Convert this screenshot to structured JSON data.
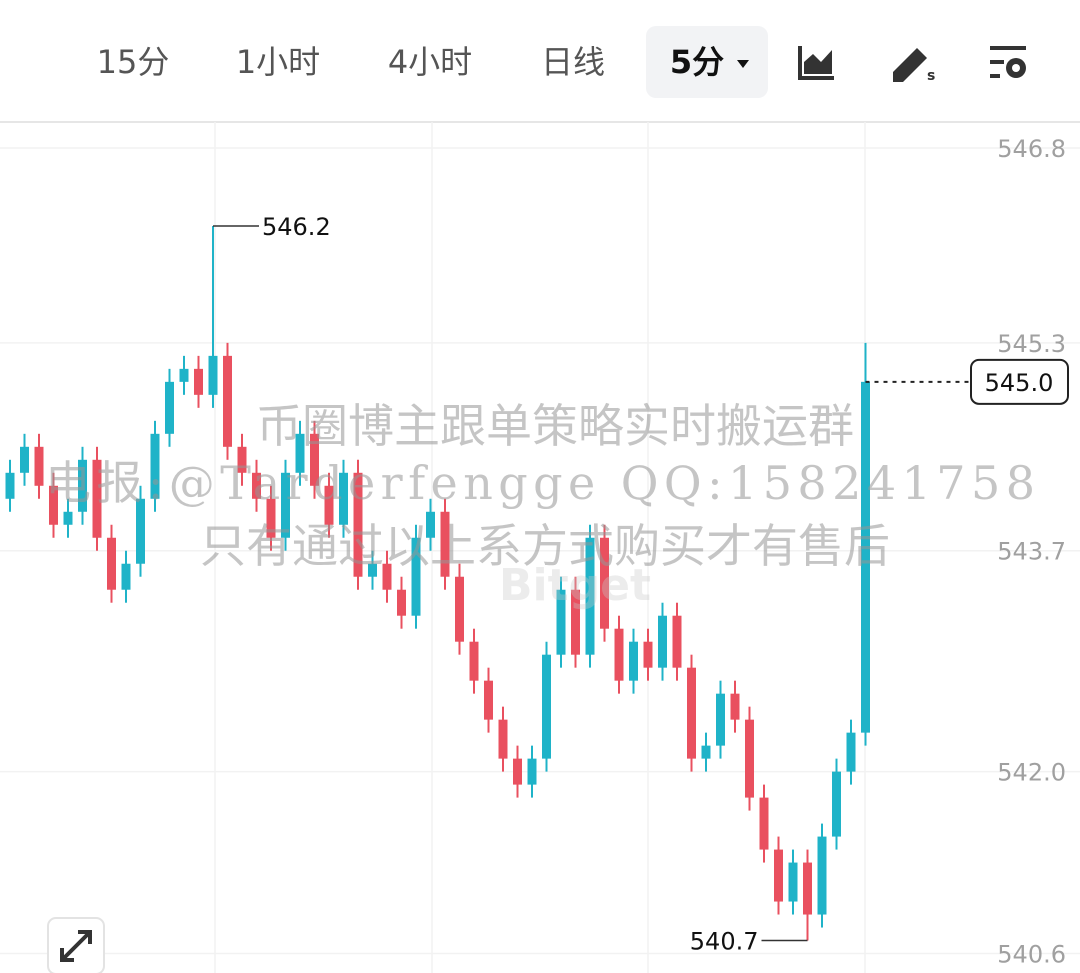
{
  "toolbar": {
    "intervals": [
      "15分",
      "1小时",
      "4小时",
      "日线"
    ],
    "active": "5分"
  },
  "chart_data": {
    "type": "candlestick",
    "open": [
      544.1,
      544.3,
      544.5,
      544.2,
      543.9,
      544.0,
      544.4,
      543.8,
      543.4,
      543.6,
      544.1,
      544.6,
      545.0,
      545.1,
      544.9,
      545.2,
      544.5,
      544.3,
      544.1,
      543.8,
      544.3,
      544.6,
      544.2,
      543.9,
      544.3,
      543.5,
      543.6,
      543.4,
      543.2,
      543.8,
      544.0,
      543.5,
      543.0,
      542.7,
      542.4,
      542.1,
      541.9,
      542.1,
      542.9,
      543.4,
      542.9,
      543.8,
      543.1,
      542.7,
      543.0,
      542.8,
      543.2,
      542.8,
      542.1,
      542.2,
      542.6,
      542.4,
      541.8,
      541.4,
      541.0,
      541.3,
      540.9,
      541.5,
      542.0,
      542.3
    ],
    "high": [
      544.4,
      544.6,
      544.6,
      544.3,
      544.1,
      544.5,
      544.5,
      543.9,
      543.7,
      544.2,
      544.7,
      545.1,
      545.2,
      545.2,
      546.2,
      545.3,
      544.6,
      544.4,
      544.2,
      544.4,
      544.7,
      544.7,
      544.3,
      544.4,
      544.4,
      543.7,
      543.7,
      543.5,
      543.9,
      544.1,
      544.1,
      543.6,
      543.1,
      542.8,
      542.5,
      542.2,
      542.2,
      543.0,
      543.5,
      543.5,
      543.9,
      543.9,
      543.2,
      543.1,
      543.1,
      543.3,
      543.3,
      542.9,
      542.3,
      542.7,
      542.7,
      542.5,
      541.9,
      541.5,
      541.4,
      541.4,
      541.6,
      542.1,
      542.4,
      545.3
    ],
    "low": [
      544.0,
      544.2,
      544.1,
      543.8,
      543.8,
      543.9,
      543.7,
      543.3,
      543.3,
      543.5,
      544.0,
      544.5,
      544.9,
      544.8,
      544.8,
      544.4,
      544.2,
      544.0,
      543.7,
      543.7,
      544.2,
      544.1,
      543.8,
      543.8,
      543.4,
      543.4,
      543.3,
      543.1,
      543.1,
      543.7,
      543.4,
      542.9,
      542.6,
      542.3,
      542.0,
      541.8,
      541.8,
      542.0,
      542.8,
      542.8,
      542.8,
      543.0,
      542.6,
      542.6,
      542.7,
      542.7,
      542.7,
      542.0,
      542.0,
      542.1,
      542.3,
      541.7,
      541.3,
      540.9,
      540.9,
      540.7,
      540.8,
      541.4,
      541.9,
      542.2
    ],
    "close": [
      544.3,
      544.5,
      544.2,
      543.9,
      544.0,
      544.4,
      543.8,
      543.4,
      543.6,
      544.1,
      544.6,
      545.0,
      545.1,
      544.9,
      545.2,
      544.5,
      544.3,
      544.1,
      543.8,
      544.3,
      544.6,
      544.2,
      543.9,
      544.3,
      543.5,
      543.6,
      543.4,
      543.2,
      543.8,
      544.0,
      543.5,
      543.0,
      542.7,
      542.4,
      542.1,
      541.9,
      542.1,
      542.9,
      543.4,
      542.9,
      543.8,
      543.1,
      542.7,
      543.0,
      542.8,
      543.2,
      542.8,
      542.1,
      542.2,
      542.6,
      542.4,
      541.8,
      541.4,
      541.0,
      541.3,
      540.9,
      541.5,
      542.0,
      542.3,
      545.0
    ],
    "up_color": "#1fb3c8",
    "down_color": "#e9505f",
    "ylim": [
      540.45,
      547.0
    ],
    "yticks": [
      546.8,
      545.3,
      543.7,
      {
        "value": 542,
        "label": "542.0"
      },
      540.6
    ],
    "grid": true,
    "last_label": "545.0"
  },
  "watermark": [
    "币圈博主跟单策略实时搬运群",
    "电报:@Tarderfengge QQ:158241758",
    "只有通过以上系方式购买才有售后"
  ],
  "logo_watermark": "Bitget"
}
